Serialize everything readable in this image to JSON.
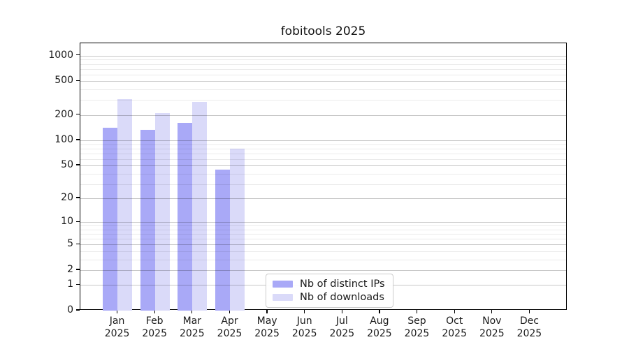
{
  "page": {
    "background": "#ffffff"
  },
  "chart_data": {
    "type": "bar",
    "title": "fobitools 2025",
    "xlabel": "",
    "ylabel": "",
    "yscale": "log1p",
    "ylim": [
      0,
      1400
    ],
    "grid": true,
    "legend_position": "lower-center-inside",
    "yticks": [
      0,
      1,
      2,
      5,
      10,
      20,
      50,
      100,
      200,
      500,
      1000
    ],
    "minor_grid_values": [
      3,
      4,
      6,
      7,
      8,
      9,
      30,
      40,
      60,
      70,
      80,
      90,
      300,
      400,
      600,
      700,
      800,
      900
    ],
    "months": [
      "Jan",
      "Feb",
      "Mar",
      "Apr",
      "May",
      "Jun",
      "Jul",
      "Aug",
      "Sep",
      "Oct",
      "Nov",
      "Dec"
    ],
    "year": "2025",
    "series": [
      {
        "name": "Nb of distinct IPs",
        "color": "#a9a9f7",
        "values": [
          140,
          133,
          160,
          45,
          null,
          null,
          null,
          null,
          null,
          null,
          null,
          null
        ]
      },
      {
        "name": "Nb of downloads",
        "color": "#dadaf9",
        "values": [
          310,
          212,
          287,
          80,
          null,
          null,
          null,
          null,
          null,
          null,
          null,
          null
        ]
      }
    ]
  },
  "colors": {
    "axis": "#000000",
    "major_grid": "#c9c9c9",
    "minor_grid": "#ececec",
    "text": "#1a1a1a"
  }
}
